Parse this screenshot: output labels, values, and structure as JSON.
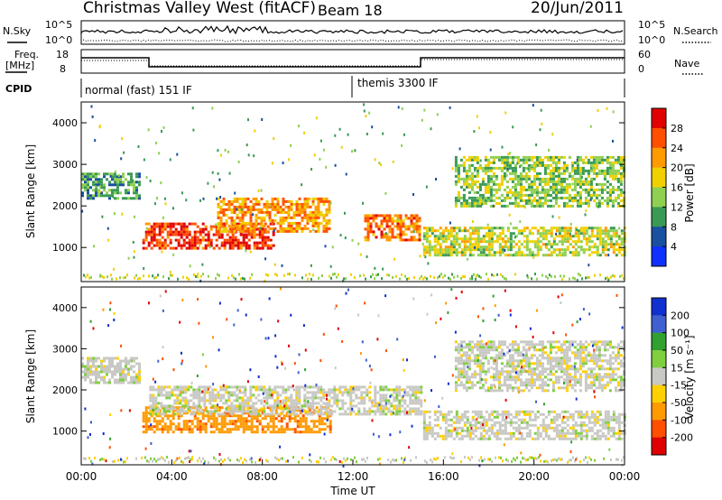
{
  "header": {
    "title": "Christmas Valley West (fitACF)",
    "beam": "Beam 18",
    "date": "20/Jun/2011"
  },
  "panels": {
    "nsky": {
      "left_label": "N.Sky",
      "left_ticks": [
        "10^5",
        "10^0"
      ],
      "right_ticks": [
        "10^5",
        "10^0"
      ],
      "right_label": "N.Search"
    },
    "freq": {
      "left_label_1": "Freq.",
      "left_label_2": "[MHz]",
      "left_ticks": [
        "18",
        "8"
      ],
      "right_ticks": [
        "60",
        "0"
      ],
      "right_label": "Nave"
    },
    "cpid": {
      "label": "CPID",
      "modes": [
        "normal (fast) 151 IF",
        "themis 3300 IF"
      ]
    }
  },
  "power_colorbar": {
    "label": "Power [dB]",
    "ticks": [
      "28",
      "24",
      "20",
      "16",
      "12",
      "8",
      "4"
    ],
    "colors": [
      "#e00000",
      "#ff5000",
      "#ff9a00",
      "#f0d000",
      "#8fd050",
      "#3a9a55",
      "#1a50a0",
      "#1030ff"
    ]
  },
  "velocity_colorbar": {
    "label": "Velocity [m s⁻¹]",
    "ticks": [
      "200",
      "100",
      "50",
      "15",
      "-15",
      "-50",
      "-100",
      "-200"
    ],
    "colors": [
      "#1030d0",
      "#4060d0",
      "#30a030",
      "#7fcf3f",
      "#c8c8c4",
      "#ffd000",
      "#ff9a00",
      "#ff5000",
      "#e00000"
    ]
  },
  "chart_data": [
    {
      "type": "heatmap",
      "title": "Power",
      "ylabel": "Slant Range [km]",
      "yticks": [
        "4000",
        "3000",
        "2000",
        "1000"
      ],
      "ylim": [
        180,
        4500
      ],
      "xlim": [
        0,
        24
      ],
      "regions": [
        {
          "t": [
            0.0,
            2.6
          ],
          "range": [
            2200,
            2800
          ],
          "value": 8
        },
        {
          "t": [
            2.7,
            8.5
          ],
          "range": [
            1000,
            1600
          ],
          "value": 26
        },
        {
          "t": [
            6.0,
            11.0
          ],
          "range": [
            1400,
            2200
          ],
          "value": 20
        },
        {
          "t": [
            12.5,
            15.0
          ],
          "range": [
            1200,
            1800
          ],
          "value": 22
        },
        {
          "t": [
            15.1,
            24.0
          ],
          "range": [
            800,
            1500
          ],
          "value": 14
        },
        {
          "t": [
            16.5,
            24.0
          ],
          "range": [
            2000,
            3200
          ],
          "value": 12
        }
      ]
    },
    {
      "type": "heatmap",
      "title": "Velocity",
      "ylabel": "Slant Range [km]",
      "xlabel": "Time UT",
      "yticks": [
        "4000",
        "3000",
        "2000",
        "1000"
      ],
      "ylim": [
        180,
        4500
      ],
      "xticks": [
        "00:00",
        "04:00",
        "08:00",
        "12:00",
        "16:00",
        "20:00",
        "00:00"
      ],
      "xlim": [
        0,
        24
      ],
      "regions": [
        {
          "t": [
            0.0,
            2.6
          ],
          "range": [
            2200,
            2800
          ],
          "value": 0
        },
        {
          "t": [
            2.7,
            11.0
          ],
          "range": [
            1000,
            1600
          ],
          "value": -60
        },
        {
          "t": [
            3.0,
            15.0
          ],
          "range": [
            1400,
            2100
          ],
          "value": 0
        },
        {
          "t": [
            15.1,
            24.0
          ],
          "range": [
            800,
            1500
          ],
          "value": 0
        },
        {
          "t": [
            16.5,
            24.0
          ],
          "range": [
            2000,
            3200
          ],
          "value": 0
        }
      ]
    }
  ]
}
